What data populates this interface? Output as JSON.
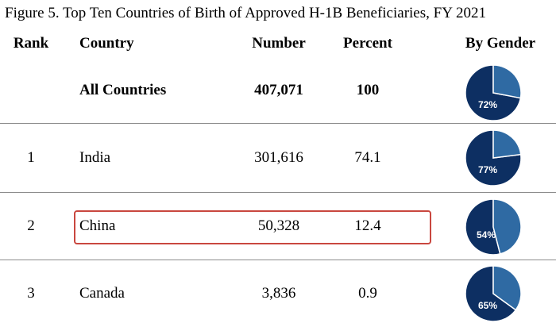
{
  "title": "Figure 5. Top Ten Countries of Birth of Approved H-1B Beneficiaries, FY 2021",
  "headers": {
    "rank": "Rank",
    "country": "Country",
    "number": "Number",
    "percent": "Percent",
    "gender": "By Gender"
  },
  "colors": {
    "male": "#0d2f62",
    "female": "#2f6aa3",
    "highlight_border": "#c9473f",
    "divider": "#8c8c8c"
  },
  "rows": [
    {
      "rank": "",
      "country": "All Countries",
      "number": "407,071",
      "percent": "100",
      "gender_pct": "72%",
      "male_share": 0.72,
      "bold": true
    },
    {
      "rank": "1",
      "country": "India",
      "number": "301,616",
      "percent": "74.1",
      "gender_pct": "77%",
      "male_share": 0.77,
      "bold": false
    },
    {
      "rank": "2",
      "country": "China",
      "number": "50,328",
      "percent": "12.4",
      "gender_pct": "54%",
      "male_share": 0.54,
      "bold": false,
      "highlighted": true
    },
    {
      "rank": "3",
      "country": "Canada",
      "number": "3,836",
      "percent": "0.9",
      "gender_pct": "65%",
      "male_share": 0.65,
      "bold": false
    }
  ]
}
